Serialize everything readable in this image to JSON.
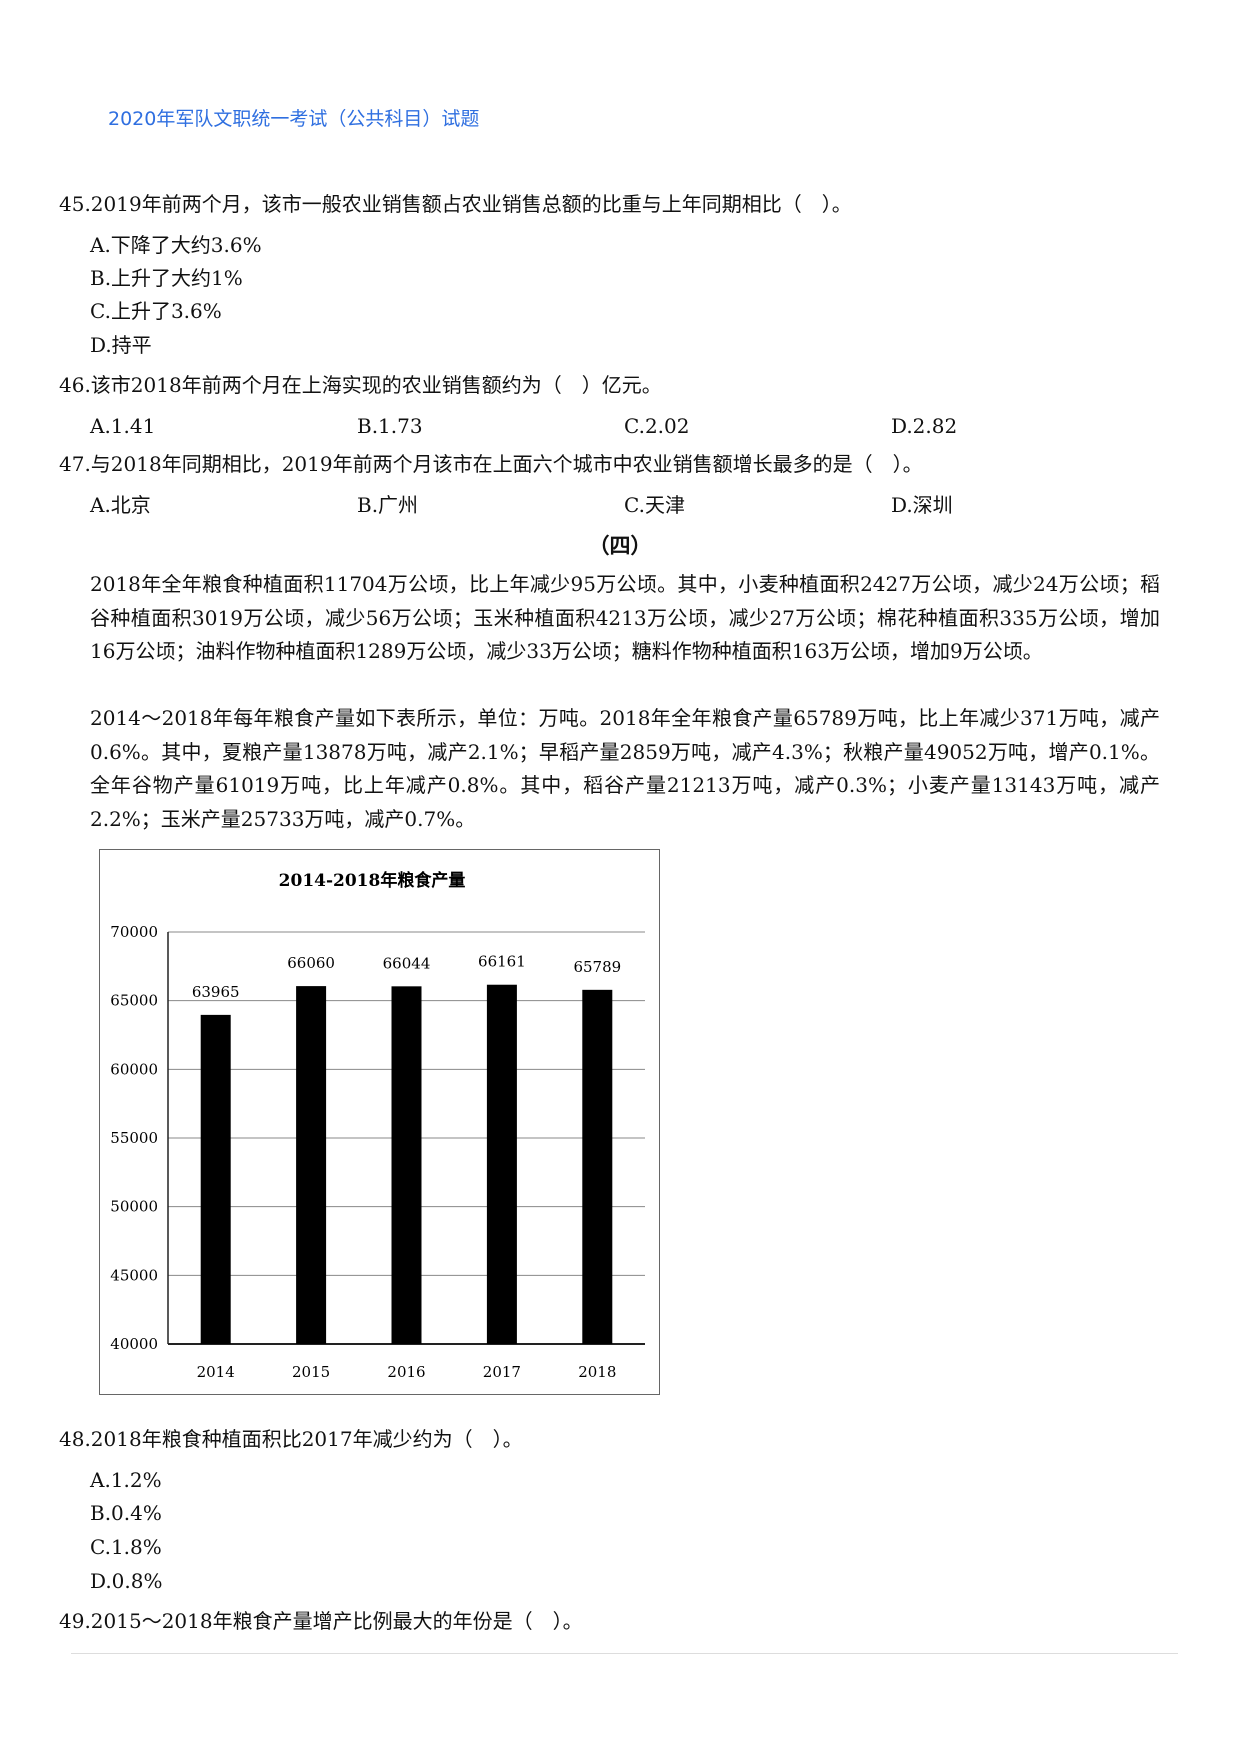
{
  "header": {
    "title": "2020年军队文职统一考试（公共科目）试题"
  },
  "questions": [
    {
      "stem": "45.2019年前两个月，该市一般农业销售额占农业销售总额的比重与上年同期相比（　）。",
      "options": [
        "A.下降了大约3.6%",
        "B.上升了大约1%",
        "C.上升了3.6%",
        "D.持平"
      ]
    },
    {
      "stem": "46.该市2018年前两个月在上海实现的农业销售额约为（　）亿元。",
      "options": [
        "A.1.41",
        "B.1.73",
        "C.2.02",
        "D.2.82"
      ]
    },
    {
      "stem": "47.与2018年同期相比，2019年前两个月该市在上面六个城市中农业销售额增长最多的是（　）。",
      "options": [
        "A.北京",
        "B.广州",
        "C.天津",
        "D.深圳"
      ]
    }
  ],
  "section": {
    "title": "（四）"
  },
  "paragraphs": [
    "2018年全年粮食种植面积11704万公顷，比上年减少95万公顷。其中，小麦种植面积2427万公顷，减少24万公顷；稻谷种植面积3019万公顷，减少56万公顷；玉米种植面积4213万公顷，减少27万公顷；棉花种植面积335万公顷，增加16万公顷；油料作物种植面积1289万公顷，减少33万公顷；糖料作物种植面积163万公顷，增加9万公顷。",
    "2014～2018年每年粮食产量如下表所示，单位：万吨。2018年全年粮食产量65789万吨，比上年减少371万吨，减产0.6%。其中，夏粮产量13878万吨，减产2.1%；早稻产量2859万吨，减产4.3%；秋粮产量49052万吨，增产0.1%。全年谷物产量61019万吨，比上年减产0.8%。其中，稻谷产量21213万吨，减产0.3%；小麦产量13143万吨，减产2.2%；玉米产量25733万吨，减产0.7%。"
  ],
  "chart_data": {
    "type": "bar",
    "title": "2014-2018年粮食产量",
    "categories": [
      "2014",
      "2015",
      "2016",
      "2017",
      "2018"
    ],
    "values": [
      63965,
      66060,
      66044,
      66161,
      65789
    ],
    "ylim": [
      40000,
      70000
    ],
    "yticks": [
      "40000",
      "45000",
      "50000",
      "55000",
      "60000",
      "65000",
      "70000"
    ],
    "grid": true,
    "bar_color": "#000000"
  },
  "questions2": [
    {
      "stem": "48.2018年粮食种植面积比2017年减少约为（　）。",
      "options": [
        "A.1.2%",
        "B.0.4%",
        "C.1.8%",
        "D.0.8%"
      ]
    },
    {
      "stem": "49.2015～2018年粮食产量增产比例最大的年份是（　）。"
    }
  ]
}
